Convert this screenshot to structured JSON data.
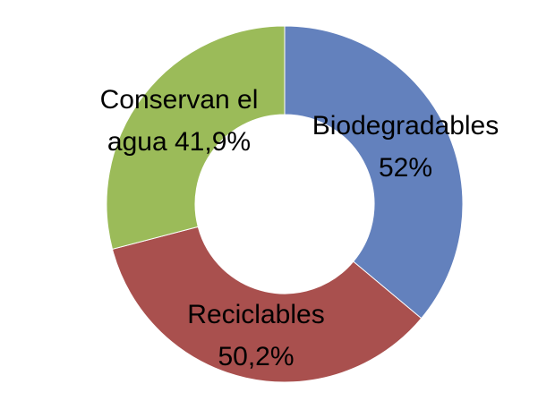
{
  "chart_data": {
    "type": "donut",
    "categories": [
      "Biodegradables",
      "Reciclables",
      "Conservan el agua"
    ],
    "values": [
      52,
      50.2,
      41.9
    ],
    "value_labels": [
      "52%",
      "50,2%",
      "41,9%"
    ],
    "colors": [
      "#6381bd",
      "#a9504e",
      "#9bbb59"
    ]
  }
}
